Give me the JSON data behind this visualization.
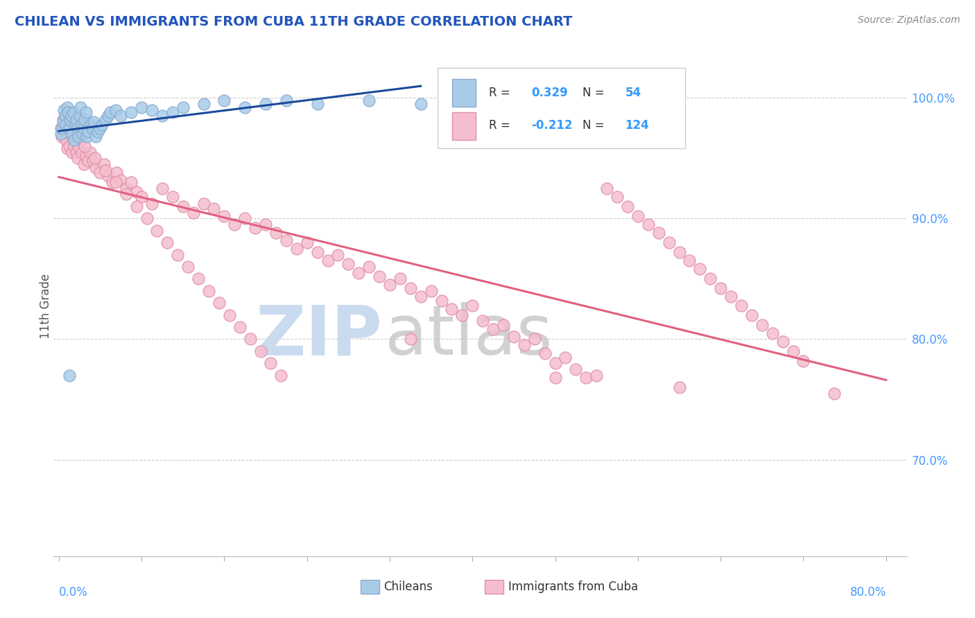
{
  "title": "CHILEAN VS IMMIGRANTS FROM CUBA 11TH GRADE CORRELATION CHART",
  "source": "Source: ZipAtlas.com",
  "ylabel": "11th Grade",
  "r_chilean": 0.329,
  "n_chilean": 54,
  "r_cuba": -0.212,
  "n_cuba": 124,
  "blue_color": "#a8cce8",
  "blue_edge_color": "#88aad0",
  "pink_color": "#f5bece",
  "pink_edge_color": "#e090a8",
  "blue_line_color": "#1a4a9a",
  "pink_line_color": "#e06080",
  "title_color": "#2255bb",
  "legend_box_color": "#eeeeee",
  "legend_text_color": "#333333",
  "legend_value_color": "#3399ff",
  "axis_label_color": "#4499ff",
  "watermark_zip_color": "#c5d8ee",
  "watermark_atlas_color": "#cccccc",
  "xlim_min": -0.005,
  "xlim_max": 0.82,
  "ylim_min": 0.62,
  "ylim_max": 1.035,
  "yticks": [
    0.7,
    0.8,
    0.9,
    1.0
  ],
  "ytick_labels": [
    "70.0%",
    "80.0%",
    "90.0%",
    "100.0%"
  ],
  "chi_x": [
    0.002,
    0.003,
    0.004,
    0.005,
    0.006,
    0.007,
    0.008,
    0.009,
    0.01,
    0.011,
    0.012,
    0.013,
    0.014,
    0.015,
    0.016,
    0.017,
    0.018,
    0.019,
    0.02,
    0.021,
    0.022,
    0.023,
    0.024,
    0.025,
    0.026,
    0.027,
    0.028,
    0.03,
    0.032,
    0.034,
    0.036,
    0.038,
    0.04,
    0.042,
    0.045,
    0.048,
    0.05,
    0.055,
    0.06,
    0.07,
    0.08,
    0.09,
    0.1,
    0.11,
    0.12,
    0.14,
    0.16,
    0.18,
    0.2,
    0.22,
    0.25,
    0.3,
    0.35,
    0.01
  ],
  "chi_y": [
    0.97,
    0.975,
    0.98,
    0.99,
    0.985,
    0.978,
    0.992,
    0.988,
    0.975,
    0.982,
    0.985,
    0.97,
    0.988,
    0.965,
    0.978,
    0.982,
    0.975,
    0.968,
    0.985,
    0.992,
    0.978,
    0.97,
    0.975,
    0.982,
    0.988,
    0.968,
    0.972,
    0.978,
    0.975,
    0.98,
    0.968,
    0.972,
    0.975,
    0.978,
    0.982,
    0.985,
    0.988,
    0.99,
    0.985,
    0.988,
    0.992,
    0.99,
    0.985,
    0.988,
    0.992,
    0.995,
    0.998,
    0.992,
    0.995,
    0.998,
    0.995,
    0.998,
    0.995,
    0.77
  ],
  "cuba_x": [
    0.002,
    0.003,
    0.004,
    0.005,
    0.006,
    0.007,
    0.008,
    0.009,
    0.01,
    0.011,
    0.012,
    0.013,
    0.014,
    0.015,
    0.016,
    0.017,
    0.018,
    0.019,
    0.02,
    0.022,
    0.024,
    0.026,
    0.028,
    0.03,
    0.033,
    0.036,
    0.04,
    0.044,
    0.048,
    0.052,
    0.056,
    0.06,
    0.065,
    0.07,
    0.075,
    0.08,
    0.09,
    0.1,
    0.11,
    0.12,
    0.13,
    0.14,
    0.15,
    0.16,
    0.17,
    0.18,
    0.19,
    0.2,
    0.21,
    0.22,
    0.23,
    0.24,
    0.25,
    0.26,
    0.27,
    0.28,
    0.29,
    0.3,
    0.31,
    0.32,
    0.33,
    0.34,
    0.35,
    0.36,
    0.37,
    0.38,
    0.39,
    0.4,
    0.41,
    0.42,
    0.43,
    0.44,
    0.45,
    0.46,
    0.47,
    0.48,
    0.49,
    0.5,
    0.51,
    0.52,
    0.53,
    0.54,
    0.55,
    0.56,
    0.57,
    0.58,
    0.59,
    0.6,
    0.61,
    0.62,
    0.63,
    0.64,
    0.65,
    0.66,
    0.67,
    0.68,
    0.69,
    0.7,
    0.71,
    0.72,
    0.025,
    0.035,
    0.045,
    0.055,
    0.065,
    0.075,
    0.085,
    0.095,
    0.105,
    0.115,
    0.125,
    0.135,
    0.145,
    0.155,
    0.165,
    0.175,
    0.185,
    0.195,
    0.205,
    0.215,
    0.34,
    0.48,
    0.6,
    0.75
  ],
  "cuba_y": [
    0.975,
    0.968,
    0.982,
    0.978,
    0.972,
    0.965,
    0.958,
    0.988,
    0.96,
    0.97,
    0.975,
    0.955,
    0.965,
    0.96,
    0.972,
    0.955,
    0.95,
    0.96,
    0.965,
    0.955,
    0.945,
    0.952,
    0.948,
    0.955,
    0.948,
    0.942,
    0.938,
    0.945,
    0.935,
    0.93,
    0.938,
    0.932,
    0.925,
    0.93,
    0.922,
    0.918,
    0.912,
    0.925,
    0.918,
    0.91,
    0.905,
    0.912,
    0.908,
    0.902,
    0.895,
    0.9,
    0.892,
    0.895,
    0.888,
    0.882,
    0.875,
    0.88,
    0.872,
    0.865,
    0.87,
    0.862,
    0.855,
    0.86,
    0.852,
    0.845,
    0.85,
    0.842,
    0.835,
    0.84,
    0.832,
    0.825,
    0.82,
    0.828,
    0.815,
    0.808,
    0.812,
    0.802,
    0.795,
    0.8,
    0.788,
    0.78,
    0.785,
    0.775,
    0.768,
    0.77,
    0.925,
    0.918,
    0.91,
    0.902,
    0.895,
    0.888,
    0.88,
    0.872,
    0.865,
    0.858,
    0.85,
    0.842,
    0.835,
    0.828,
    0.82,
    0.812,
    0.805,
    0.798,
    0.79,
    0.782,
    0.96,
    0.95,
    0.94,
    0.93,
    0.92,
    0.91,
    0.9,
    0.89,
    0.88,
    0.87,
    0.86,
    0.85,
    0.84,
    0.83,
    0.82,
    0.81,
    0.8,
    0.79,
    0.78,
    0.77,
    0.8,
    0.768,
    0.76,
    0.755
  ]
}
